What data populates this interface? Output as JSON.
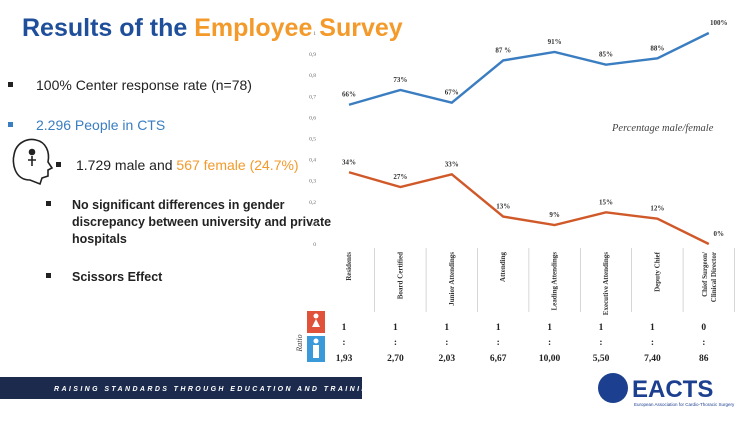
{
  "slide": {
    "title": "Results of the ",
    "title_highlight": "Employee Survey",
    "bullets": [
      "100% Center response rate (n=78)",
      "2.296  People in CTS"
    ],
    "sub_bullet": "1.729 male and ",
    "sub_bullet_highlight": "567 female (24.7%)",
    "points": [
      "No significant differences in gender",
      "discrepancy between university and private",
      "hospitals"
    ],
    "point2": "Scissors Effect",
    "footer": "RAISING STANDARDS THROUGH EDUCATION AND TRAINING",
    "logo": "EACTS",
    "logo_sub": "European Association for Cardio-Thoracic Surgery"
  },
  "chart_data": {
    "type": "line",
    "annotation": "Percentage male/female",
    "categories": [
      "Residents",
      "Board Certified",
      "Junior Attendings",
      "Attending",
      "Leading Attendings",
      "Executive Attendings",
      "Deputy Chief",
      "Chief Surgeon/ Clinical Director"
    ],
    "ylim": [
      0,
      1
    ],
    "yticks": [
      0,
      {
        "value": 0.1,
        "label": "0,1"
      },
      {
        "value": 0.2,
        "label": "0,2"
      },
      {
        "value": 0.3,
        "label": "0,3"
      },
      {
        "value": 0.4,
        "label": "0,4"
      },
      {
        "value": 0.5,
        "label": "0,5"
      },
      {
        "value": 0.6,
        "label": "0,6"
      },
      {
        "value": 0.7,
        "label": "0,7"
      },
      {
        "value": 0.8,
        "label": "0,8"
      },
      {
        "value": 0.9,
        "label": "0,9"
      },
      1
    ],
    "series": [
      {
        "name": "male",
        "color": "#3a7dc0",
        "values": [
          0.66,
          0.73,
          0.67,
          0.87,
          0.91,
          0.85,
          0.88,
          1.0
        ],
        "value_labels": [
          "66%",
          "73%",
          "67%",
          "87 %",
          "91%",
          "85%",
          "88%",
          "100%"
        ]
      },
      {
        "name": "female",
        "color": "#d0592a",
        "values": [
          0.34,
          0.27,
          0.33,
          0.13,
          0.09,
          0.15,
          0.12,
          0.0
        ],
        "value_labels": [
          "34%",
          "27%",
          "33%",
          "13%",
          "9%",
          "15%",
          "12%",
          "0%"
        ]
      }
    ]
  },
  "ratio": {
    "label": "Ratio",
    "separator": ":",
    "female": [
      "1",
      "1",
      "1",
      "1",
      "1",
      "1",
      "1",
      "0"
    ],
    "male": [
      "1,93",
      "2,70",
      "2,03",
      "6,67",
      "10,00",
      "5,50",
      "7,40",
      "86"
    ]
  }
}
